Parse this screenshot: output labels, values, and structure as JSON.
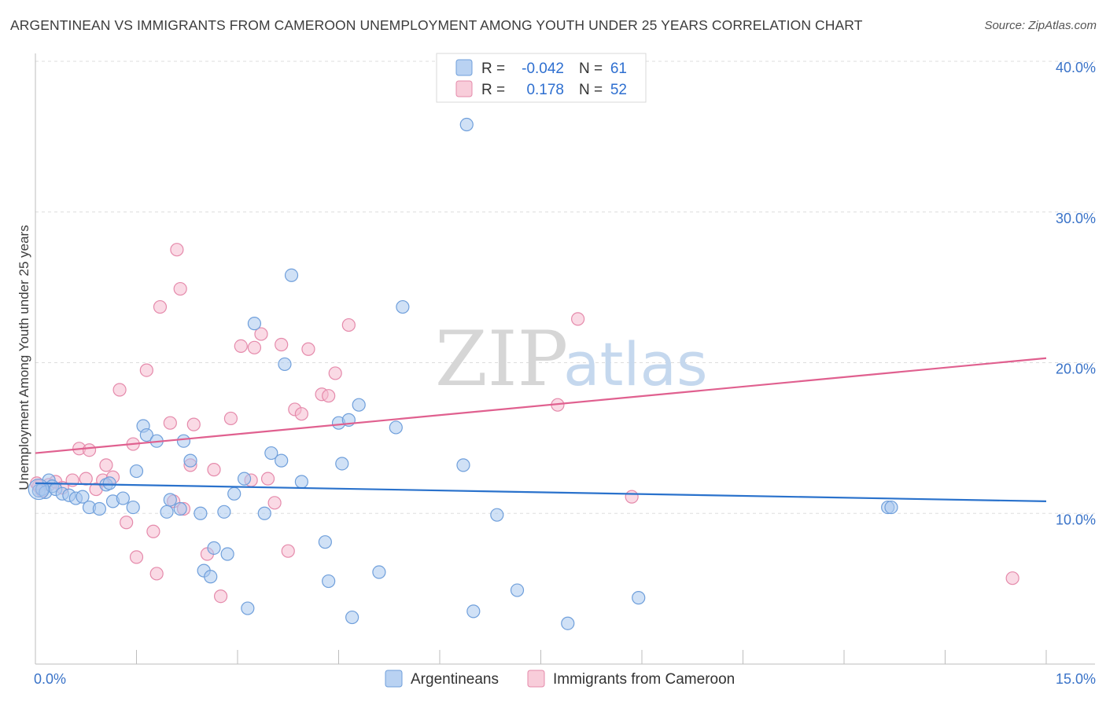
{
  "title": "ARGENTINEAN VS IMMIGRANTS FROM CAMEROON UNEMPLOYMENT AMONG YOUTH UNDER 25 YEARS CORRELATION CHART",
  "source": "Source: ZipAtlas.com",
  "watermark": {
    "zip": "ZIP",
    "atlas": "atlas"
  },
  "colors": {
    "blue_fill": "#a9c8ef",
    "blue_stroke": "#6f9fdb",
    "blue_line": "#2a72cc",
    "pink_fill": "#f5bcd0",
    "pink_stroke": "#e58aab",
    "pink_line": "#e0608f",
    "axis_text": "#3a73c8",
    "grid": "#dddddd"
  },
  "legend": {
    "rows": [
      {
        "r_label": "R =",
        "r_value": "-0.042",
        "n_label": "N =",
        "n_value": "61"
      },
      {
        "r_label": "R =",
        "r_value": "0.178",
        "n_label": "N =",
        "n_value": "52"
      }
    ]
  },
  "bottom_legend": [
    "Argentineans",
    "Immigrants from Cameroon"
  ],
  "chart_data": {
    "type": "scatter",
    "title": "ARGENTINEAN VS IMMIGRANTS FROM CAMEROON UNEMPLOYMENT AMONG YOUTH UNDER 25 YEARS CORRELATION CHART",
    "xlabel": "",
    "ylabel": "Unemployment Among Youth under 25 years",
    "xlim": [
      0,
      15
    ],
    "ylim": [
      0,
      40
    ],
    "x_tick_labels": [
      "0.0%",
      "15.0%"
    ],
    "y_ticks": [
      10,
      20,
      30,
      40
    ],
    "y_tick_labels": [
      "10.0%",
      "20.0%",
      "30.0%",
      "40.0%"
    ],
    "grid": true,
    "series": [
      {
        "name": "Argentineans",
        "r": -0.042,
        "n": 61,
        "trend": {
          "x0": 0,
          "y0": 12.0,
          "x1": 15,
          "y1": 10.8
        },
        "points": [
          [
            0.05,
            11.5
          ],
          [
            0.1,
            11.6
          ],
          [
            0.15,
            11.4
          ],
          [
            0.2,
            12.2
          ],
          [
            0.25,
            11.8
          ],
          [
            0.3,
            11.6
          ],
          [
            0.4,
            11.3
          ],
          [
            0.5,
            11.2
          ],
          [
            0.6,
            11.0
          ],
          [
            0.7,
            11.1
          ],
          [
            0.8,
            10.4
          ],
          [
            0.95,
            10.3
          ],
          [
            1.05,
            11.9
          ],
          [
            1.1,
            12.0
          ],
          [
            1.15,
            10.8
          ],
          [
            1.3,
            11.0
          ],
          [
            1.45,
            10.4
          ],
          [
            1.5,
            12.8
          ],
          [
            1.6,
            15.8
          ],
          [
            1.65,
            15.2
          ],
          [
            1.8,
            14.8
          ],
          [
            1.95,
            10.1
          ],
          [
            2.0,
            10.9
          ],
          [
            2.15,
            10.3
          ],
          [
            2.2,
            14.8
          ],
          [
            2.3,
            13.5
          ],
          [
            2.45,
            10.0
          ],
          [
            2.5,
            6.2
          ],
          [
            2.6,
            5.8
          ],
          [
            2.65,
            7.7
          ],
          [
            2.8,
            10.1
          ],
          [
            2.85,
            7.3
          ],
          [
            2.95,
            11.3
          ],
          [
            3.1,
            12.3
          ],
          [
            3.15,
            3.7
          ],
          [
            3.25,
            22.6
          ],
          [
            3.4,
            10.0
          ],
          [
            3.5,
            14.0
          ],
          [
            3.65,
            13.5
          ],
          [
            3.7,
            19.9
          ],
          [
            3.8,
            25.8
          ],
          [
            3.95,
            12.1
          ],
          [
            4.3,
            8.1
          ],
          [
            4.35,
            5.5
          ],
          [
            4.5,
            16.0
          ],
          [
            4.55,
            13.3
          ],
          [
            4.65,
            16.2
          ],
          [
            4.7,
            3.1
          ],
          [
            4.8,
            17.2
          ],
          [
            5.1,
            6.1
          ],
          [
            5.35,
            15.7
          ],
          [
            5.45,
            23.7
          ],
          [
            6.35,
            13.2
          ],
          [
            6.4,
            35.8
          ],
          [
            6.5,
            3.5
          ],
          [
            6.85,
            9.9
          ],
          [
            7.15,
            4.9
          ],
          [
            7.9,
            2.7
          ],
          [
            8.95,
            4.4
          ],
          [
            12.65,
            10.4
          ],
          [
            12.7,
            10.4
          ]
        ]
      },
      {
        "name": "Immigrants from Cameroon",
        "r": 0.178,
        "n": 52,
        "trend": {
          "x0": 0,
          "y0": 14.0,
          "x1": 15,
          "y1": 20.3
        },
        "points": [
          [
            0.05,
            11.8
          ],
          [
            0.1,
            11.5
          ],
          [
            0.2,
            11.9
          ],
          [
            0.3,
            12.1
          ],
          [
            0.4,
            11.7
          ],
          [
            0.55,
            12.2
          ],
          [
            0.65,
            14.3
          ],
          [
            0.75,
            12.3
          ],
          [
            0.8,
            14.2
          ],
          [
            0.9,
            11.6
          ],
          [
            1.0,
            12.2
          ],
          [
            1.05,
            13.2
          ],
          [
            1.15,
            12.4
          ],
          [
            1.25,
            18.2
          ],
          [
            1.35,
            9.4
          ],
          [
            1.45,
            14.6
          ],
          [
            1.5,
            7.1
          ],
          [
            1.65,
            19.5
          ],
          [
            1.75,
            8.8
          ],
          [
            1.8,
            6.0
          ],
          [
            1.85,
            23.7
          ],
          [
            2.0,
            16.0
          ],
          [
            2.05,
            10.8
          ],
          [
            2.1,
            27.5
          ],
          [
            2.15,
            24.9
          ],
          [
            2.2,
            10.3
          ],
          [
            2.3,
            13.2
          ],
          [
            2.35,
            15.9
          ],
          [
            2.55,
            7.3
          ],
          [
            2.65,
            12.9
          ],
          [
            2.75,
            4.5
          ],
          [
            2.9,
            16.3
          ],
          [
            3.05,
            21.1
          ],
          [
            3.2,
            12.2
          ],
          [
            3.25,
            21.0
          ],
          [
            3.35,
            21.9
          ],
          [
            3.45,
            12.3
          ],
          [
            3.55,
            10.7
          ],
          [
            3.65,
            21.2
          ],
          [
            3.75,
            7.5
          ],
          [
            3.85,
            16.9
          ],
          [
            3.95,
            16.6
          ],
          [
            4.05,
            20.9
          ],
          [
            4.25,
            17.9
          ],
          [
            4.35,
            17.8
          ],
          [
            4.45,
            19.3
          ],
          [
            4.65,
            22.5
          ],
          [
            7.75,
            17.2
          ],
          [
            8.05,
            22.9
          ],
          [
            8.85,
            11.1
          ],
          [
            14.5,
            5.7
          ],
          [
            0.02,
            12.0
          ]
        ]
      }
    ]
  }
}
